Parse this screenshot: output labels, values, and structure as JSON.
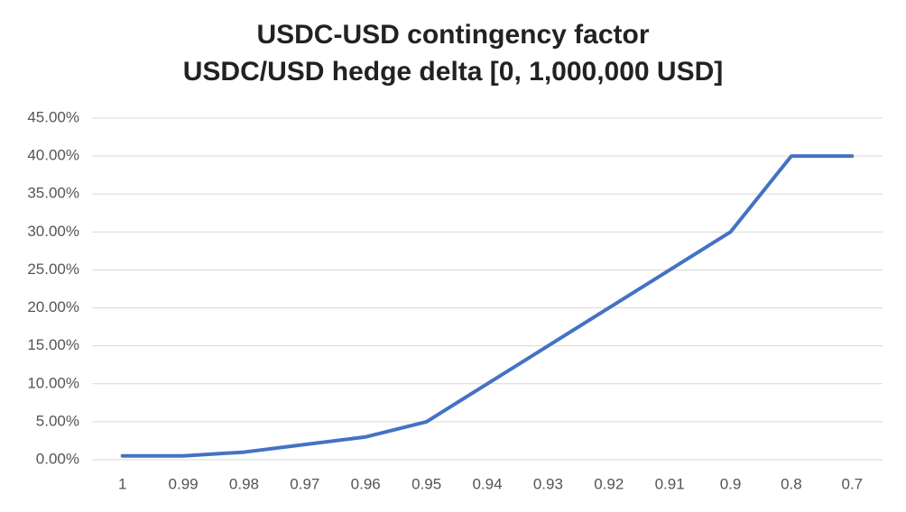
{
  "chart_data": {
    "type": "line",
    "title": "USDC-USD contingency factor",
    "subtitle": "USDC/USD hedge delta [0, 1,000,000 USD]",
    "categories": [
      "1",
      "0.99",
      "0.98",
      "0.97",
      "0.96",
      "0.95",
      "0.94",
      "0.93",
      "0.92",
      "0.91",
      "0.9",
      "0.8",
      "0.7"
    ],
    "series": [
      {
        "color": "#4472c4",
        "values": [
          0.5,
          0.5,
          1,
          2,
          3,
          5,
          10,
          15,
          20,
          25,
          30,
          40,
          40
        ]
      }
    ],
    "ylim": [
      0,
      45
    ],
    "yticks": [
      {
        "value": 0,
        "label": "0.00%"
      },
      {
        "value": 5,
        "label": "5.00%"
      },
      {
        "value": 10,
        "label": "10.00%"
      },
      {
        "value": 15,
        "label": "15.00%"
      },
      {
        "value": 20,
        "label": "20.00%"
      },
      {
        "value": 25,
        "label": "25.00%"
      },
      {
        "value": 30,
        "label": "30.00%"
      },
      {
        "value": 35,
        "label": "35.00%"
      },
      {
        "value": 40,
        "label": "40.00%"
      },
      {
        "value": 45,
        "label": "45.00%"
      }
    ],
    "grid": true
  }
}
